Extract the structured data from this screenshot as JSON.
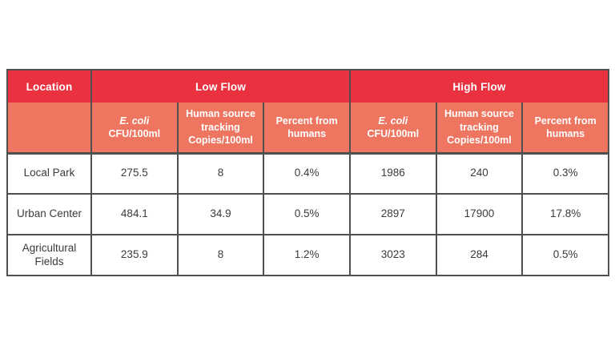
{
  "table": {
    "header": {
      "location": "Location",
      "groups": [
        {
          "label": "Low Flow"
        },
        {
          "label": "High Flow"
        }
      ],
      "subcolumns": [
        {
          "name": "E. coli",
          "unit": "CFU/100ml",
          "italic": true
        },
        {
          "name": "Human source tracking",
          "unit": "Copies/100ml",
          "italic": false
        },
        {
          "name": "Percent from humans",
          "unit": "",
          "italic": false
        }
      ]
    },
    "rows": [
      {
        "location": "Local Park",
        "values": [
          "275.5",
          "8",
          "0.4%",
          "1986",
          "240",
          "0.3%"
        ]
      },
      {
        "location": "Urban Center",
        "values": [
          "484.1",
          "34.9",
          "0.5%",
          "2897",
          "17900",
          "17.8%"
        ]
      },
      {
        "location": "Agricultural Fields",
        "values": [
          "235.9",
          "8",
          "1.2%",
          "3023",
          "284",
          "0.5%"
        ]
      }
    ],
    "colors": {
      "header_red": "#ea3140",
      "subheader_salmon": "#ee7560",
      "header_text": "#ffffff",
      "body_text": "#3b3b3b",
      "grid_line": "#4f4f4f",
      "outer_border": "#383838",
      "body_background": "#ffffff",
      "page_background": "#ffffff"
    }
  },
  "chart_data": {
    "type": "table",
    "title": "",
    "column_groups": [
      "",
      "Low Flow",
      "Low Flow",
      "Low Flow",
      "High Flow",
      "High Flow",
      "High Flow"
    ],
    "columns": [
      "Location",
      "E. coli CFU/100ml",
      "Human source tracking Copies/100ml",
      "Percent from humans",
      "E. coli CFU/100ml",
      "Human source tracking Copies/100ml",
      "Percent from humans"
    ],
    "rows": [
      [
        "Local Park",
        275.5,
        8,
        "0.4%",
        1986,
        240,
        "0.3%"
      ],
      [
        "Urban Center",
        484.1,
        34.9,
        "0.5%",
        2897,
        17900,
        "17.8%"
      ],
      [
        "Agricultural Fields",
        235.9,
        8,
        "1.2%",
        3023,
        284,
        "0.5%"
      ]
    ]
  }
}
